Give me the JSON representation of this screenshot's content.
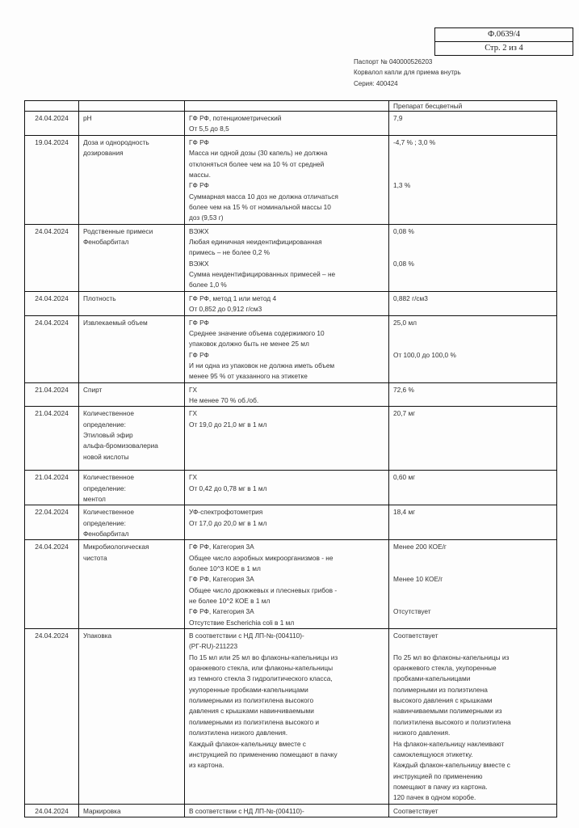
{
  "form_box": {
    "code": "Ф.0639/4",
    "page": "Стр. 2 из 4"
  },
  "meta": {
    "passport": "Паспорт № 040000526203",
    "product": "Корвалол капли для приема внутрь",
    "series": "Серия: 400424"
  },
  "table": {
    "header_row": [
      "",
      "",
      "",
      "Препарат бесцветный"
    ],
    "rows": [
      {
        "date": "24.04.2024",
        "test": [
          "pH"
        ],
        "spec": [
          "ГФ РФ, потенциометрический",
          "От 5,5 до 8,5"
        ],
        "result": [
          "7,9"
        ]
      },
      {
        "date": "19.04.2024",
        "test": [
          "Доза и однородность",
          "дозирования"
        ],
        "spec": [
          "ГФ РФ",
          "Масса ни одной дозы (30 капель) не должна",
          "отклоняться более чем на 10 % от средней",
          "массы.",
          "ГФ РФ",
          "Суммарная масса 10 доз не должна отличаться",
          "более чем на 15 % от номинальной массы 10",
          "доз (9,53 г)"
        ],
        "result": [
          "-4,7 % ; 3,0 %",
          "",
          "",
          "",
          "1,3 %"
        ]
      },
      {
        "date": "24.04.2024",
        "test": [
          "Родственные примеси",
          "Фенобарбитал"
        ],
        "spec": [
          "ВЭЖХ",
          "Любая единичная неидентифицированная",
          "примесь – не более 0,2 %",
          "ВЭЖХ",
          "Сумма неидентифицированных примесей – не",
          "более 1,0 %"
        ],
        "result": [
          "0,08 %",
          "",
          "",
          "0,08 %"
        ]
      },
      {
        "date": "24.04.2024",
        "test": [
          "Плотность"
        ],
        "spec": [
          "ГФ РФ, метод 1 или метод 4",
          "От 0,852 до 0,912 г/см3"
        ],
        "result": [
          "0,882 г/см3"
        ]
      },
      {
        "date": "24.04.2024",
        "test": [
          "Извлекаемый объем"
        ],
        "spec": [
          "ГФ РФ",
          "Среднее значение объема содержимого 10",
          "упаковок должно быть не менее 25 мл",
          "ГФ РФ",
          "И ни одна из упаковок не должна иметь объем",
          "менее 95 % от указанного на этикетке"
        ],
        "result": [
          "25,0 мл",
          "",
          "",
          "От 100,0 до 100,0 %"
        ]
      },
      {
        "date": "21.04.2024",
        "test": [
          "Спирт"
        ],
        "spec": [
          "ГХ",
          "Не менее 70 % об./об."
        ],
        "result": [
          "72,6 %"
        ]
      },
      {
        "date": "21.04.2024",
        "test": [
          "Количественное",
          "определение:",
          "Этиловый эфир",
          "альфа-бромизовалериа",
          "новой кислоты"
        ],
        "spec": [
          "ГХ",
          "От 19,0 до 21,0 мг в 1 мл"
        ],
        "result": [
          "20,7 мг"
        ]
      },
      {
        "date": "21.04.2024",
        "test": [
          "Количественное",
          "определение:",
          "ментол"
        ],
        "spec": [
          "ГХ",
          "От 0,42 до 0,78 мг в 1 мл"
        ],
        "result": [
          "0,60 мг"
        ]
      },
      {
        "date": "22.04.2024",
        "test": [
          "Количественное",
          "определение:",
          "Фенобарбитал"
        ],
        "spec": [
          "УФ-спектрофотометрия",
          "От 17,0 до 20,0 мг в 1 мл"
        ],
        "result": [
          "18,4 мг"
        ]
      },
      {
        "date": "24.04.2024",
        "test": [
          "Микробиологическая",
          "чистота"
        ],
        "spec": [
          "ГФ РФ, Категория 3А",
          "Общее число аэробных микроорганизмов - не",
          "более 10^3 КОЕ в 1 мл",
          "ГФ РФ, Категория 3А",
          "Общее число дрожжевых и плесневых грибов -",
          "не более 10^2 КОЕ в 1 мл",
          "ГФ РФ, Категория 3А",
          "Отсутствие  Escherichia coli  в 1 мл"
        ],
        "result": [
          "Менее 200 КОЕ/г",
          "",
          "",
          "Менее 10 КОЕ/г",
          "",
          "",
          "Отсутствует"
        ]
      },
      {
        "date": "24.04.2024",
        "test": [
          "Упаковка"
        ],
        "spec": [
          "В соответствии с НД ЛП-№-(004110)-",
          "(РГ-RU)-211223",
          "По 15 мл или 25 мл во флаконы-капельницы из",
          "оранжевого стекла, или флаконы-капельницы",
          "из темного стекла 3 гидролитического класса,",
          "укупоренные пробками-капельницами",
          "полимерными из полиэтилена высокого",
          "давления с крышками навинчиваемыми",
          "полимерными из полиэтилена высокого  и",
          "полиэтилена низкого давления.",
          "Каждый флакон-капельницу вместе с",
          "инструкцией по применению помещают в пачку",
          "из картона."
        ],
        "result": [
          "Соответствует",
          "",
          "По 25 мл во флаконы-капельницы из",
          "оранжевого стекла, укупоренные",
          "пробками-капельницами",
          "полимерными из полиэтилена",
          "высокого давления с крышками",
          "навинчиваемыми полимерными из",
          "полиэтилена высокого  и полиэтилена",
          "низкого давления.",
          "На флакон-капельницу наклеивают",
          "самоклеящуюся этикетку.",
          "Каждый флакон-капельницу вместе с",
          "инструкцией по применению",
          "помещают в пачку из картона.",
          " 120 пачек в одном коробе."
        ]
      },
      {
        "date": "24.04.2024",
        "test": [
          "Маркировка"
        ],
        "spec": [
          "В соответствии с НД ЛП-№-(004110)-"
        ],
        "result": [
          "Соответствует"
        ]
      }
    ]
  }
}
